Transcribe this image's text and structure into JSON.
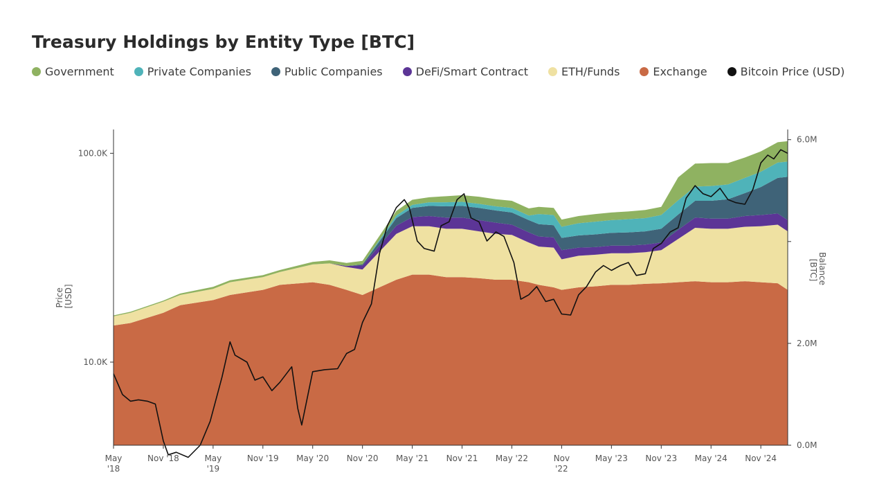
{
  "colors": {
    "government": "#8fb261",
    "private": "#4fb3b9",
    "public": "#3f6378",
    "defi": "#5c3596",
    "eth": "#efe1a2",
    "exchange": "#c96a45",
    "price": "#111111"
  },
  "chart_data": {
    "type": "area",
    "title": "Treasury Holdings by Entity Type [BTC]",
    "legend": [
      {
        "key": "government",
        "label": "Government"
      },
      {
        "key": "private",
        "label": "Private Companies"
      },
      {
        "key": "public",
        "label": "Public Companies"
      },
      {
        "key": "defi",
        "label": "DeFi/Smart Contract"
      },
      {
        "key": "eth",
        "label": "ETH/Funds"
      },
      {
        "key": "exchange",
        "label": "Exchange"
      },
      {
        "key": "price",
        "label": "Bitcoin Price (USD)"
      }
    ],
    "legend_position": "top",
    "left_axis": {
      "label_line1": "Price",
      "label_line2": "[USD]",
      "scale": "log",
      "range": [
        4000,
        130000
      ],
      "ticks": [
        {
          "value": 10000,
          "label": "10.0K"
        },
        {
          "value": 100000,
          "label": "100.0K"
        }
      ]
    },
    "right_axis": {
      "label_line1": "Balance",
      "label_line2": "[BTC]",
      "scale": "linear",
      "range": [
        0,
        6200000
      ],
      "ticks": [
        {
          "value": 0,
          "label": "0.0M"
        },
        {
          "value": 2000000,
          "label": "2.0M"
        },
        {
          "value": 6000000,
          "label": "6.0M"
        }
      ]
    },
    "x_axis": {
      "range": [
        2018.33,
        2025.1
      ],
      "ticks": [
        {
          "x": 2018.33,
          "l1": "May",
          "l2": "'18"
        },
        {
          "x": 2018.83,
          "l1": "Nov '18",
          "l2": ""
        },
        {
          "x": 2019.33,
          "l1": "May",
          "l2": "'19"
        },
        {
          "x": 2019.83,
          "l1": "Nov '19",
          "l2": ""
        },
        {
          "x": 2020.33,
          "l1": "May '20",
          "l2": ""
        },
        {
          "x": 2020.83,
          "l1": "Nov '20",
          "l2": ""
        },
        {
          "x": 2021.33,
          "l1": "May '21",
          "l2": ""
        },
        {
          "x": 2021.83,
          "l1": "Nov '21",
          "l2": ""
        },
        {
          "x": 2022.33,
          "l1": "May '22",
          "l2": ""
        },
        {
          "x": 2022.83,
          "l1": "Nov",
          "l2": "'22"
        },
        {
          "x": 2023.33,
          "l1": "May '23",
          "l2": ""
        },
        {
          "x": 2023.83,
          "l1": "Nov '23",
          "l2": ""
        },
        {
          "x": 2024.33,
          "l1": "May '24",
          "l2": ""
        },
        {
          "x": 2024.83,
          "l1": "Nov '24",
          "l2": ""
        }
      ]
    },
    "x": [
      2018.33,
      2018.5,
      2018.83,
      2019.0,
      2019.33,
      2019.5,
      2019.83,
      2020.0,
      2020.33,
      2020.5,
      2020.67,
      2020.83,
      2021.0,
      2021.17,
      2021.33,
      2021.5,
      2021.67,
      2021.83,
      2022.0,
      2022.17,
      2022.33,
      2022.5,
      2022.6,
      2022.75,
      2022.83,
      2023.0,
      2023.17,
      2023.33,
      2023.5,
      2023.67,
      2023.83,
      2024.0,
      2024.17,
      2024.33,
      2024.5,
      2024.67,
      2024.83,
      2025.0,
      2025.1
    ],
    "series": [
      {
        "key": "exchange",
        "name": "Exchange",
        "values": [
          2.35,
          2.4,
          2.6,
          2.75,
          2.85,
          2.95,
          3.05,
          3.15,
          3.2,
          3.15,
          3.05,
          2.95,
          3.1,
          3.25,
          3.35,
          3.35,
          3.3,
          3.3,
          3.28,
          3.25,
          3.25,
          3.2,
          3.15,
          3.1,
          3.05,
          3.1,
          3.12,
          3.15,
          3.15,
          3.17,
          3.18,
          3.2,
          3.22,
          3.2,
          3.2,
          3.22,
          3.2,
          3.18,
          3.05
        ]
      },
      {
        "key": "eth",
        "name": "ETH/Funds",
        "values": [
          0.18,
          0.2,
          0.22,
          0.2,
          0.22,
          0.25,
          0.25,
          0.25,
          0.35,
          0.42,
          0.45,
          0.5,
          0.7,
          0.9,
          0.95,
          0.95,
          0.95,
          0.95,
          0.92,
          0.9,
          0.88,
          0.78,
          0.75,
          0.78,
          0.6,
          0.62,
          0.62,
          0.62,
          0.62,
          0.62,
          0.65,
          0.85,
          1.05,
          1.05,
          1.05,
          1.07,
          1.1,
          1.15,
          1.15
        ]
      },
      {
        "key": "defi",
        "name": "DeFi/Smart Contract",
        "values": [
          0,
          0,
          0,
          0,
          0,
          0,
          0,
          0,
          0,
          0,
          0.02,
          0.08,
          0.12,
          0.16,
          0.18,
          0.2,
          0.22,
          0.22,
          0.22,
          0.22,
          0.2,
          0.2,
          0.2,
          0.2,
          0.18,
          0.16,
          0.15,
          0.15,
          0.15,
          0.15,
          0.15,
          0.18,
          0.2,
          0.2,
          0.2,
          0.21,
          0.22,
          0.22,
          0.22
        ]
      },
      {
        "key": "public",
        "name": "Public Companies",
        "values": [
          0,
          0,
          0,
          0,
          0,
          0,
          0,
          0,
          0,
          0,
          0,
          0.02,
          0.08,
          0.15,
          0.18,
          0.2,
          0.22,
          0.23,
          0.24,
          0.24,
          0.24,
          0.24,
          0.24,
          0.24,
          0.24,
          0.24,
          0.25,
          0.25,
          0.26,
          0.26,
          0.27,
          0.3,
          0.33,
          0.35,
          0.38,
          0.45,
          0.55,
          0.7,
          0.85
        ]
      },
      {
        "key": "private",
        "name": "Private Companies",
        "values": [
          0,
          0,
          0,
          0,
          0,
          0,
          0,
          0,
          0,
          0,
          0,
          0,
          0.03,
          0.05,
          0.06,
          0.07,
          0.08,
          0.08,
          0.08,
          0.08,
          0.09,
          0.09,
          0.2,
          0.2,
          0.22,
          0.24,
          0.25,
          0.25,
          0.26,
          0.26,
          0.27,
          0.28,
          0.28,
          0.29,
          0.29,
          0.3,
          0.3,
          0.3,
          0.3
        ]
      },
      {
        "key": "government",
        "name": "Government",
        "values": [
          0.02,
          0.02,
          0.02,
          0.03,
          0.04,
          0.04,
          0.04,
          0.04,
          0.05,
          0.06,
          0.06,
          0.07,
          0.08,
          0.09,
          0.1,
          0.1,
          0.12,
          0.13,
          0.14,
          0.14,
          0.14,
          0.14,
          0.14,
          0.14,
          0.14,
          0.14,
          0.15,
          0.15,
          0.15,
          0.16,
          0.16,
          0.45,
          0.45,
          0.45,
          0.42,
          0.4,
          0.4,
          0.4,
          0.4
        ]
      }
    ],
    "series_units": "millions BTC",
    "price": {
      "name": "Bitcoin Price (USD)",
      "x": [
        2018.33,
        2018.42,
        2018.5,
        2018.58,
        2018.67,
        2018.75,
        2018.83,
        2018.88,
        2018.96,
        2019.08,
        2019.2,
        2019.3,
        2019.42,
        2019.5,
        2019.55,
        2019.67,
        2019.75,
        2019.83,
        2019.92,
        2020.0,
        2020.12,
        2020.18,
        2020.22,
        2020.33,
        2020.45,
        2020.58,
        2020.67,
        2020.75,
        2020.83,
        2020.92,
        2021.0,
        2021.08,
        2021.17,
        2021.25,
        2021.3,
        2021.38,
        2021.45,
        2021.55,
        2021.62,
        2021.7,
        2021.78,
        2021.85,
        2021.92,
        2022.0,
        2022.08,
        2022.17,
        2022.25,
        2022.35,
        2022.42,
        2022.5,
        2022.58,
        2022.67,
        2022.75,
        2022.83,
        2022.92,
        2023.0,
        2023.08,
        2023.17,
        2023.25,
        2023.33,
        2023.42,
        2023.5,
        2023.58,
        2023.67,
        2023.75,
        2023.83,
        2023.92,
        2024.0,
        2024.08,
        2024.17,
        2024.25,
        2024.33,
        2024.42,
        2024.5,
        2024.58,
        2024.67,
        2024.75,
        2024.83,
        2024.9,
        2024.96,
        2025.03,
        2025.1
      ],
      "values": [
        8800,
        7000,
        6500,
        6600,
        6500,
        6300,
        4200,
        3600,
        3700,
        3500,
        4000,
        5200,
        8500,
        12500,
        10800,
        10000,
        8200,
        8500,
        7300,
        8000,
        9500,
        6000,
        5000,
        9000,
        9200,
        9300,
        11000,
        11500,
        15500,
        19000,
        33000,
        45000,
        55000,
        60000,
        55000,
        38000,
        35000,
        34000,
        45000,
        47000,
        60000,
        64000,
        49000,
        47000,
        38000,
        42000,
        40000,
        30000,
        20000,
        21000,
        23000,
        19500,
        20000,
        17000,
        16800,
        21000,
        23000,
        27000,
        29000,
        27500,
        29000,
        30000,
        26000,
        26500,
        35000,
        37000,
        42000,
        44000,
        61000,
        70000,
        64000,
        62000,
        68000,
        60000,
        58000,
        57000,
        67000,
        90000,
        98000,
        94000,
        104000,
        100000
      ]
    }
  }
}
